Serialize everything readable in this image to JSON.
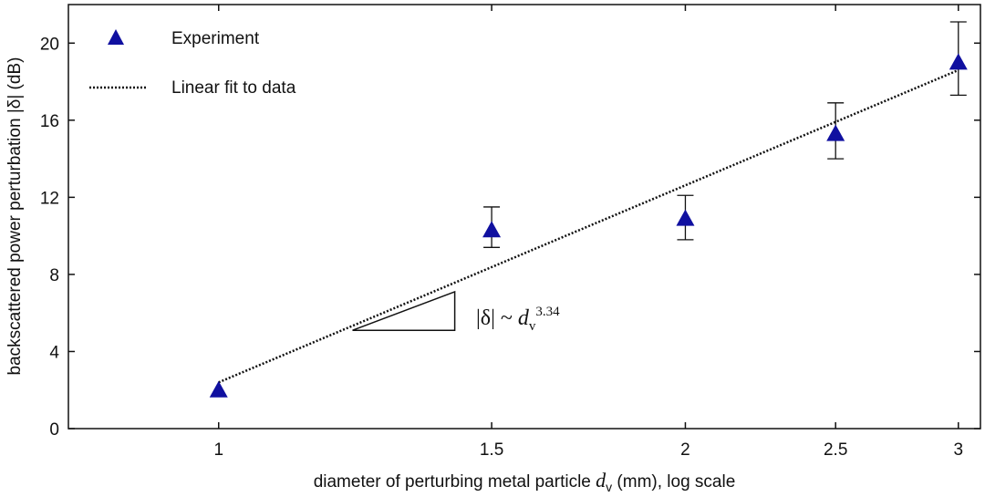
{
  "chart_data": {
    "type": "scatter",
    "xlabel_prefix": "diameter of perturbing metal particle ",
    "xlabel_var": "d",
    "xlabel_sub": "v",
    "xlabel_suffix": " (mm), log scale",
    "ylabel": "backscattered power perturbation |δ| (dB)",
    "x_scale": "log",
    "xlim": [
      0.8,
      3.1
    ],
    "ylim": [
      0,
      22
    ],
    "x_ticks": [
      1,
      1.5,
      2,
      2.5,
      3
    ],
    "x_tick_labels": [
      "1",
      "1.5",
      "2",
      "2.5",
      "3"
    ],
    "y_ticks": [
      0,
      4,
      8,
      12,
      16,
      20
    ],
    "y_tick_labels": [
      "0",
      "4",
      "8",
      "12",
      "16",
      "20"
    ],
    "grid": false,
    "legend_position": "top-left",
    "colors": {
      "marker": "#1010a0",
      "line": "#111111"
    },
    "series": [
      {
        "name": "Experiment",
        "style": "triangle-markers",
        "x": [
          1,
          1.5,
          2,
          2.5,
          3
        ],
        "y": [
          2.0,
          10.3,
          10.9,
          15.3,
          19.0
        ],
        "err_low": [
          null,
          9.4,
          9.8,
          14.0,
          17.3
        ],
        "err_high": [
          null,
          11.5,
          12.1,
          16.9,
          21.1
        ]
      },
      {
        "name": "Linear fit to data",
        "style": "dotted-line",
        "x": [
          1,
          3
        ],
        "y": [
          2.4,
          18.6
        ]
      }
    ],
    "annotation": {
      "lhs": "|δ| ~ ",
      "var": "d",
      "sub": "v",
      "exp": "3.34",
      "triangle_x": [
        1.22,
        1.42
      ],
      "triangle_y": [
        5.1,
        7.1
      ]
    }
  }
}
